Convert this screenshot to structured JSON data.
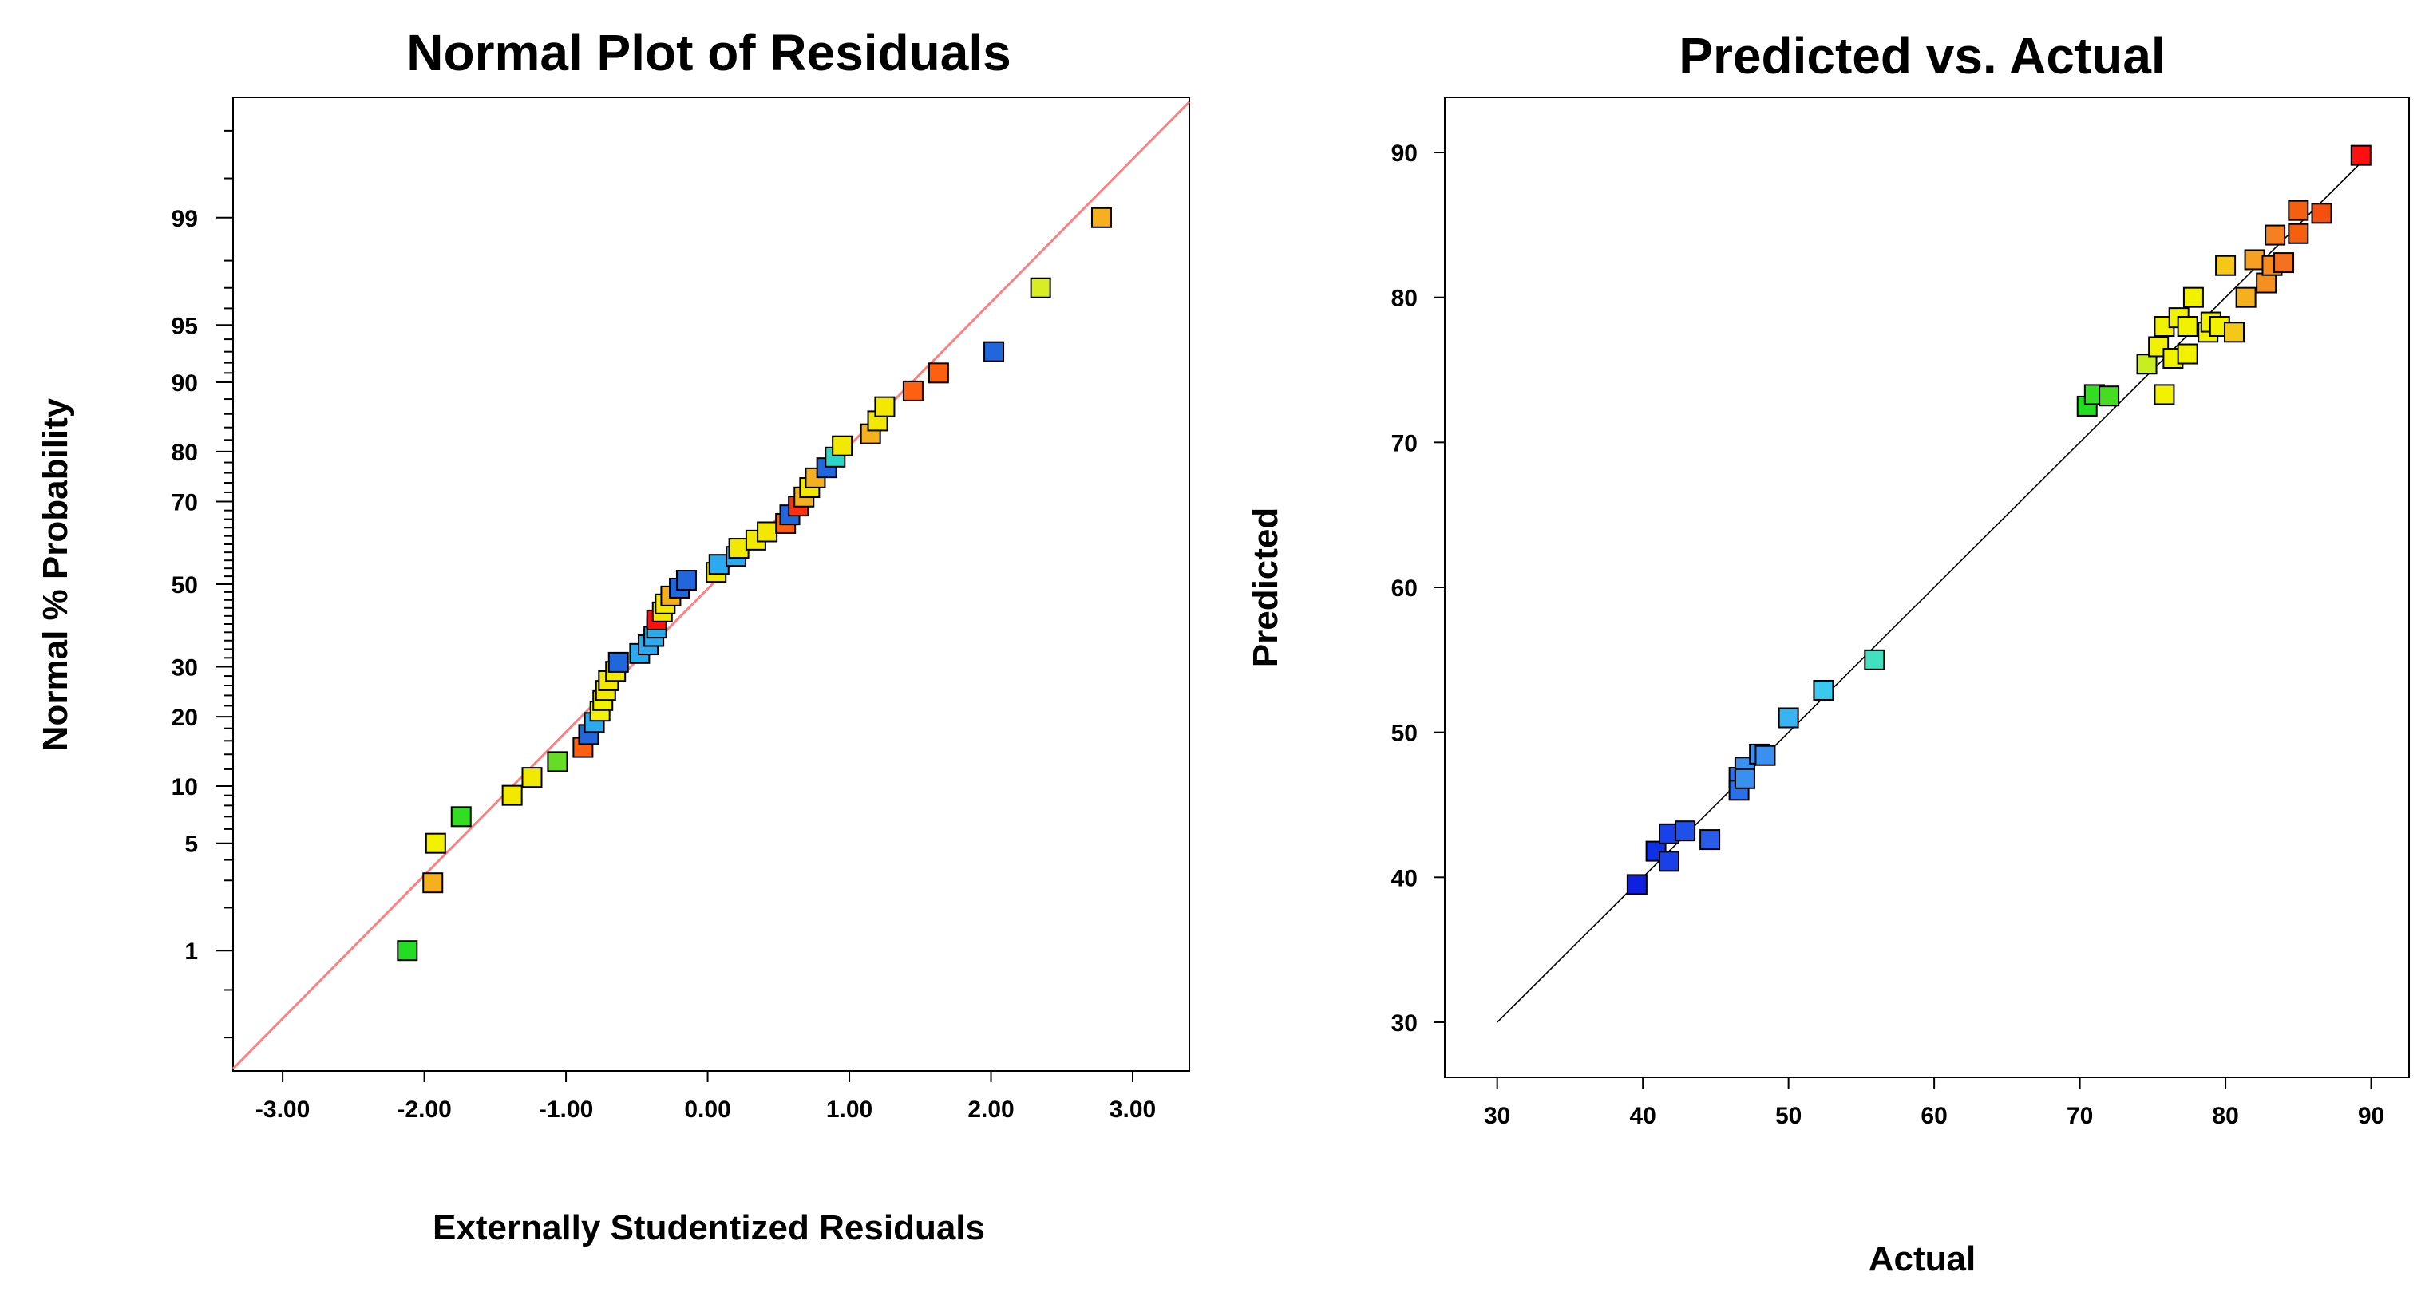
{
  "chart_data": [
    {
      "type": "scatter",
      "title": "Normal Plot of Residuals",
      "xlabel": "Externally Studentized Residuals",
      "ylabel": "Normal % Probability",
      "xlim": [
        -3.35,
        3.4
      ],
      "ylim": [
        0.1,
        99.9
      ],
      "xticks": [
        "-3.00",
        "-2.00",
        "-1.00",
        "0.00",
        "1.00",
        "2.00",
        "3.00"
      ],
      "yticks": [
        1,
        5,
        10,
        20,
        30,
        50,
        70,
        80,
        90,
        95,
        99
      ],
      "reference_line": {
        "color": "#ff8080",
        "from": [
          -3.35,
          0.105
        ],
        "to": [
          3.4,
          99.89
        ]
      },
      "points": [
        {
          "x": -2.12,
          "y": 1.0,
          "color": "#22dd22"
        },
        {
          "x": -1.94,
          "y": 2.9,
          "color": "#f5b020"
        },
        {
          "x": -1.92,
          "y": 5.0,
          "color": "#f2f200"
        },
        {
          "x": -1.74,
          "y": 7.0,
          "color": "#33dd22"
        },
        {
          "x": -1.38,
          "y": 9.0,
          "color": "#f2e800"
        },
        {
          "x": -1.24,
          "y": 11.0,
          "color": "#f2e800"
        },
        {
          "x": -1.06,
          "y": 13.0,
          "color": "#66dd22"
        },
        {
          "x": -0.88,
          "y": 15.0,
          "color": "#ff6010"
        },
        {
          "x": -0.84,
          "y": 17.0,
          "color": "#2266dd"
        },
        {
          "x": -0.8,
          "y": 19.0,
          "color": "#2aaaf0"
        },
        {
          "x": -0.76,
          "y": 21.0,
          "color": "#f2f200"
        },
        {
          "x": -0.74,
          "y": 23.0,
          "color": "#f2f200"
        },
        {
          "x": -0.72,
          "y": 25.0,
          "color": "#f2e800"
        },
        {
          "x": -0.7,
          "y": 27.0,
          "color": "#f2e800"
        },
        {
          "x": -0.65,
          "y": 29.0,
          "color": "#f2e800"
        },
        {
          "x": -0.63,
          "y": 31.0,
          "color": "#2266dd"
        },
        {
          "x": -0.48,
          "y": 33.0,
          "color": "#2aaaf0"
        },
        {
          "x": -0.42,
          "y": 35.0,
          "color": "#2aaaf0"
        },
        {
          "x": -0.38,
          "y": 37.0,
          "color": "#2aaaf0"
        },
        {
          "x": -0.36,
          "y": 39.0,
          "color": "#2aaaf0"
        },
        {
          "x": -0.36,
          "y": 41.0,
          "color": "#ff1010"
        },
        {
          "x": -0.32,
          "y": 43.0,
          "color": "#f2e800"
        },
        {
          "x": -0.3,
          "y": 45.0,
          "color": "#f2e800"
        },
        {
          "x": -0.26,
          "y": 47.0,
          "color": "#f5b020"
        },
        {
          "x": -0.2,
          "y": 49.0,
          "color": "#2266dd"
        },
        {
          "x": -0.15,
          "y": 51.0,
          "color": "#2266dd"
        },
        {
          "x": 0.06,
          "y": 53.0,
          "color": "#f2e800"
        },
        {
          "x": 0.08,
          "y": 55.0,
          "color": "#2aaaf0"
        },
        {
          "x": 0.2,
          "y": 57.0,
          "color": "#2aaaf0"
        },
        {
          "x": 0.22,
          "y": 59.0,
          "color": "#f2e800"
        },
        {
          "x": 0.34,
          "y": 61.0,
          "color": "#f2e800"
        },
        {
          "x": 0.42,
          "y": 63.0,
          "color": "#f2e800"
        },
        {
          "x": 0.55,
          "y": 65.0,
          "color": "#ff6010"
        },
        {
          "x": 0.58,
          "y": 67.0,
          "color": "#2266dd"
        },
        {
          "x": 0.64,
          "y": 69.0,
          "color": "#ff3010"
        },
        {
          "x": 0.68,
          "y": 71.0,
          "color": "#f5b020"
        },
        {
          "x": 0.72,
          "y": 73.0,
          "color": "#f2e800"
        },
        {
          "x": 0.76,
          "y": 75.0,
          "color": "#f5b020"
        },
        {
          "x": 0.84,
          "y": 77.0,
          "color": "#2266dd"
        },
        {
          "x": 0.9,
          "y": 79.0,
          "color": "#2bd6c6"
        },
        {
          "x": 0.95,
          "y": 81.0,
          "color": "#f2e800"
        },
        {
          "x": 1.15,
          "y": 83.0,
          "color": "#f5b020"
        },
        {
          "x": 1.2,
          "y": 85.0,
          "color": "#f2e800"
        },
        {
          "x": 1.25,
          "y": 87.0,
          "color": "#f2e800"
        },
        {
          "x": 1.45,
          "y": 89.0,
          "color": "#ff6010"
        },
        {
          "x": 1.63,
          "y": 91.0,
          "color": "#ff6010"
        },
        {
          "x": 2.02,
          "y": 93.0,
          "color": "#2266dd"
        },
        {
          "x": 2.35,
          "y": 97.0,
          "color": "#d8ee22"
        },
        {
          "x": 2.78,
          "y": 99.0,
          "color": "#f5b020"
        }
      ]
    },
    {
      "type": "scatter",
      "title": "Predicted vs. Actual",
      "xlabel": "Actual",
      "ylabel": "Predicted",
      "xlim": [
        26.4,
        92.6
      ],
      "ylim": [
        26.2,
        93.8
      ],
      "xticks": [
        30,
        40,
        50,
        60,
        70,
        80,
        90
      ],
      "yticks": [
        30,
        40,
        50,
        60,
        70,
        80,
        90
      ],
      "reference_line": {
        "color": "#000000",
        "from": [
          30,
          30
        ],
        "to": [
          90,
          90
        ]
      },
      "points": [
        {
          "x": 39.6,
          "y": 39.5,
          "color": "#1020e0"
        },
        {
          "x": 40.9,
          "y": 41.8,
          "color": "#1030e8"
        },
        {
          "x": 41.8,
          "y": 41.1,
          "color": "#1a40ea"
        },
        {
          "x": 41.8,
          "y": 43.0,
          "color": "#1a40ea"
        },
        {
          "x": 42.9,
          "y": 43.2,
          "color": "#2050ec"
        },
        {
          "x": 44.6,
          "y": 42.6,
          "color": "#2a5ce8"
        },
        {
          "x": 46.6,
          "y": 46.9,
          "color": "#2a70e8"
        },
        {
          "x": 46.6,
          "y": 46.0,
          "color": "#2a70e8"
        },
        {
          "x": 47.0,
          "y": 47.6,
          "color": "#3a90f0"
        },
        {
          "x": 47.0,
          "y": 46.8,
          "color": "#3a90f0"
        },
        {
          "x": 48.0,
          "y": 48.5,
          "color": "#3a90f0"
        },
        {
          "x": 48.4,
          "y": 48.4,
          "color": "#3a90f0"
        },
        {
          "x": 50.0,
          "y": 51.0,
          "color": "#3ab4f0"
        },
        {
          "x": 52.4,
          "y": 52.9,
          "color": "#3ac8f0"
        },
        {
          "x": 55.9,
          "y": 55.0,
          "color": "#40e0c0"
        },
        {
          "x": 70.5,
          "y": 72.5,
          "color": "#22dd22"
        },
        {
          "x": 71.0,
          "y": 73.3,
          "color": "#33dd22"
        },
        {
          "x": 72.0,
          "y": 73.2,
          "color": "#44dd22"
        },
        {
          "x": 74.6,
          "y": 75.4,
          "color": "#c8ee22"
        },
        {
          "x": 75.4,
          "y": 76.6,
          "color": "#f2f200"
        },
        {
          "x": 75.8,
          "y": 73.3,
          "color": "#f2f200"
        },
        {
          "x": 75.8,
          "y": 78.0,
          "color": "#f2f200"
        },
        {
          "x": 76.4,
          "y": 75.8,
          "color": "#f2f200"
        },
        {
          "x": 76.8,
          "y": 78.6,
          "color": "#f2f200"
        },
        {
          "x": 77.4,
          "y": 76.1,
          "color": "#f2f200"
        },
        {
          "x": 77.4,
          "y": 78.0,
          "color": "#f2f200"
        },
        {
          "x": 77.8,
          "y": 80.0,
          "color": "#f2f200"
        },
        {
          "x": 78.8,
          "y": 77.6,
          "color": "#f2f200"
        },
        {
          "x": 79.0,
          "y": 78.3,
          "color": "#f2f200"
        },
        {
          "x": 79.6,
          "y": 78.0,
          "color": "#f2f200"
        },
        {
          "x": 80.0,
          "y": 82.2,
          "color": "#f5c818"
        },
        {
          "x": 80.6,
          "y": 77.6,
          "color": "#f5c818"
        },
        {
          "x": 81.4,
          "y": 80.0,
          "color": "#f5b020"
        },
        {
          "x": 82.0,
          "y": 82.6,
          "color": "#f5a020"
        },
        {
          "x": 82.8,
          "y": 81.0,
          "color": "#f59020"
        },
        {
          "x": 83.2,
          "y": 82.2,
          "color": "#f58a20"
        },
        {
          "x": 83.4,
          "y": 84.3,
          "color": "#f58020"
        },
        {
          "x": 84.0,
          "y": 82.4,
          "color": "#f57020"
        },
        {
          "x": 85.0,
          "y": 84.4,
          "color": "#f56010"
        },
        {
          "x": 85.0,
          "y": 86.0,
          "color": "#f56010"
        },
        {
          "x": 86.6,
          "y": 85.8,
          "color": "#f55010"
        },
        {
          "x": 89.3,
          "y": 89.8,
          "color": "#ff1010"
        }
      ]
    }
  ]
}
